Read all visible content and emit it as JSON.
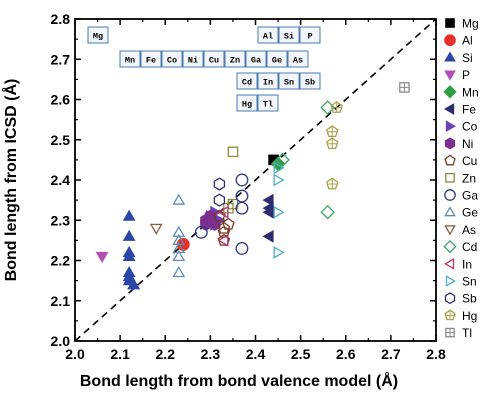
{
  "chart_data": {
    "type": "scatter",
    "xlabel": "Bond length from bond valence model (Å)",
    "ylabel": "Bond length from ICSD (Å)",
    "xlim": [
      2.0,
      2.8
    ],
    "ylim": [
      2.0,
      2.8
    ],
    "x_ticks": [
      "2.0",
      "2.1",
      "2.2",
      "2.3",
      "2.4",
      "2.5",
      "2.6",
      "2.7",
      "2.8"
    ],
    "y_ticks": [
      "2.0",
      "2.1",
      "2.2",
      "2.3",
      "2.4",
      "2.5",
      "2.6",
      "2.7",
      "2.8"
    ],
    "reference_line": "y = x (dashed)",
    "grid": false,
    "legend_position": "right",
    "periodic_table_inset": [
      "Mg",
      "Al",
      "Si",
      "P",
      "Mn",
      "Fe",
      "Co",
      "Ni",
      "Cu",
      "Zn",
      "Ga",
      "Ge",
      "As",
      "Cd",
      "In",
      "Sn",
      "Sb",
      "Hg",
      "Tl"
    ],
    "series": [
      {
        "name": "Mg",
        "marker": "square",
        "color": "#000000",
        "filled": true,
        "points": [
          [
            2.44,
            2.45
          ]
        ]
      },
      {
        "name": "Al",
        "marker": "circle",
        "color": "#e8302a",
        "filled": true,
        "points": [
          [
            2.24,
            2.24
          ]
        ]
      },
      {
        "name": "Si",
        "marker": "triangle-up",
        "color": "#2a47a8",
        "filled": true,
        "points": [
          [
            2.12,
            2.31
          ],
          [
            2.12,
            2.26
          ],
          [
            2.12,
            2.22
          ],
          [
            2.12,
            2.21
          ],
          [
            2.12,
            2.17
          ],
          [
            2.12,
            2.16
          ],
          [
            2.12,
            2.15
          ],
          [
            2.13,
            2.14
          ],
          [
            2.13,
            2.14
          ]
        ]
      },
      {
        "name": "P",
        "marker": "triangle-down",
        "color": "#b44fb4",
        "filled": true,
        "points": [
          [
            2.06,
            2.21
          ]
        ]
      },
      {
        "name": "Mn",
        "marker": "diamond",
        "color": "#2f9e44",
        "filled": true,
        "points": [
          [
            2.45,
            2.44
          ]
        ]
      },
      {
        "name": "Fe",
        "marker": "triangle-left",
        "color": "#2e2d6e",
        "filled": true,
        "points": [
          [
            2.43,
            2.35
          ],
          [
            2.43,
            2.33
          ],
          [
            2.43,
            2.32
          ],
          [
            2.43,
            2.26
          ]
        ]
      },
      {
        "name": "Co",
        "marker": "triangle-right",
        "color": "#6a43b8",
        "filled": true,
        "points": [
          [
            2.31,
            2.32
          ],
          [
            2.32,
            2.3
          ],
          [
            2.31,
            2.29
          ],
          [
            2.3,
            2.31
          ]
        ]
      },
      {
        "name": "Ni",
        "marker": "hexagon",
        "color": "#7b2f8e",
        "filled": true,
        "points": [
          [
            2.29,
            2.3
          ],
          [
            2.3,
            2.31
          ],
          [
            2.31,
            2.29
          ],
          [
            2.29,
            2.29
          ]
        ]
      },
      {
        "name": "Cu",
        "marker": "pentagon",
        "color": "#7a3b25",
        "filled": false,
        "points": [
          [
            2.32,
            2.31
          ],
          [
            2.33,
            2.28
          ],
          [
            2.33,
            2.25
          ],
          [
            2.34,
            2.29
          ],
          [
            2.33,
            2.27
          ]
        ]
      },
      {
        "name": "Zn",
        "marker": "square",
        "color": "#8c8a3c",
        "filled": false,
        "points": [
          [
            2.35,
            2.47
          ],
          [
            2.35,
            2.34
          ],
          [
            2.34,
            2.33
          ]
        ]
      },
      {
        "name": "Ga",
        "marker": "circle",
        "color": "#2e3a82",
        "filled": false,
        "points": [
          [
            2.37,
            2.4
          ],
          [
            2.37,
            2.36
          ],
          [
            2.37,
            2.33
          ],
          [
            2.37,
            2.23
          ],
          [
            2.28,
            2.27
          ]
        ]
      },
      {
        "name": "Ge",
        "marker": "triangle-up",
        "color": "#5b8db5",
        "filled": false,
        "points": [
          [
            2.23,
            2.35
          ],
          [
            2.23,
            2.27
          ],
          [
            2.23,
            2.25
          ],
          [
            2.23,
            2.23
          ],
          [
            2.23,
            2.21
          ],
          [
            2.23,
            2.17
          ]
        ]
      },
      {
        "name": "As",
        "marker": "triangle-down",
        "color": "#8a5a3b",
        "filled": false,
        "points": [
          [
            2.18,
            2.28
          ]
        ]
      },
      {
        "name": "Cd",
        "marker": "diamond",
        "color": "#3fa66b",
        "filled": false,
        "points": [
          [
            2.56,
            2.58
          ],
          [
            2.56,
            2.32
          ],
          [
            2.46,
            2.45
          ]
        ]
      },
      {
        "name": "In",
        "marker": "triangle-left",
        "color": "#b8306c",
        "filled": false,
        "points": [
          [
            2.33,
            2.32
          ],
          [
            2.33,
            2.25
          ]
        ]
      },
      {
        "name": "Sn",
        "marker": "triangle-right",
        "color": "#4cb2c4",
        "filled": false,
        "points": [
          [
            2.45,
            2.43
          ],
          [
            2.45,
            2.4
          ],
          [
            2.45,
            2.32
          ],
          [
            2.45,
            2.22
          ]
        ]
      },
      {
        "name": "Sb",
        "marker": "hexagon",
        "color": "#2e2d6e",
        "filled": false,
        "points": [
          [
            2.32,
            2.39
          ],
          [
            2.32,
            2.35
          ]
        ]
      },
      {
        "name": "Hg",
        "marker": "pentagon-cross",
        "color": "#a9a04a",
        "filled": false,
        "points": [
          [
            2.57,
            2.52
          ],
          [
            2.57,
            2.49
          ],
          [
            2.57,
            2.39
          ],
          [
            2.58,
            2.58
          ]
        ]
      },
      {
        "name": "Tl",
        "marker": "square-cross",
        "color": "#8a8a8a",
        "filled": false,
        "points": [
          [
            2.73,
            2.63
          ]
        ]
      }
    ]
  }
}
